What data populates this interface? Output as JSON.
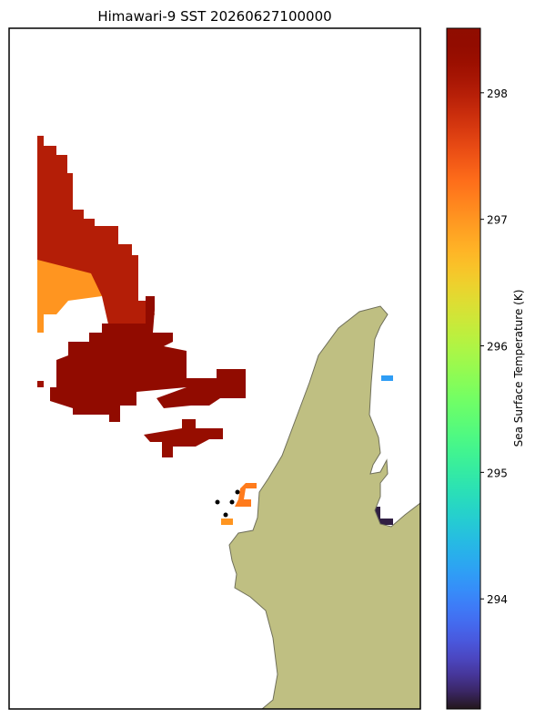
{
  "chart_data": {
    "type": "raster-map",
    "title": "Himawari-9 SST 20260627100000",
    "colormap": "turbo",
    "colorbar_label": "Sea Surface Temperature (K)",
    "clim": [
      293.13,
      298.51
    ],
    "cticks": [
      294,
      295,
      296,
      297,
      298
    ],
    "regions": [
      {
        "values": [
          298.0
        ]
      },
      {
        "values": [
          297.0
        ]
      },
      {
        "values": [
          298.4
        ]
      },
      {
        "values": [
          298.4
        ]
      },
      {
        "values": [
          298.3
        ]
      },
      {
        "values": [
          298.2
        ]
      },
      {
        "values": [
          297.2
        ]
      },
      {
        "values": [
          297.0
        ]
      },
      {
        "values": [
          294.2
        ]
      },
      {
        "values": [
          293.2
        ]
      }
    ]
  }
}
